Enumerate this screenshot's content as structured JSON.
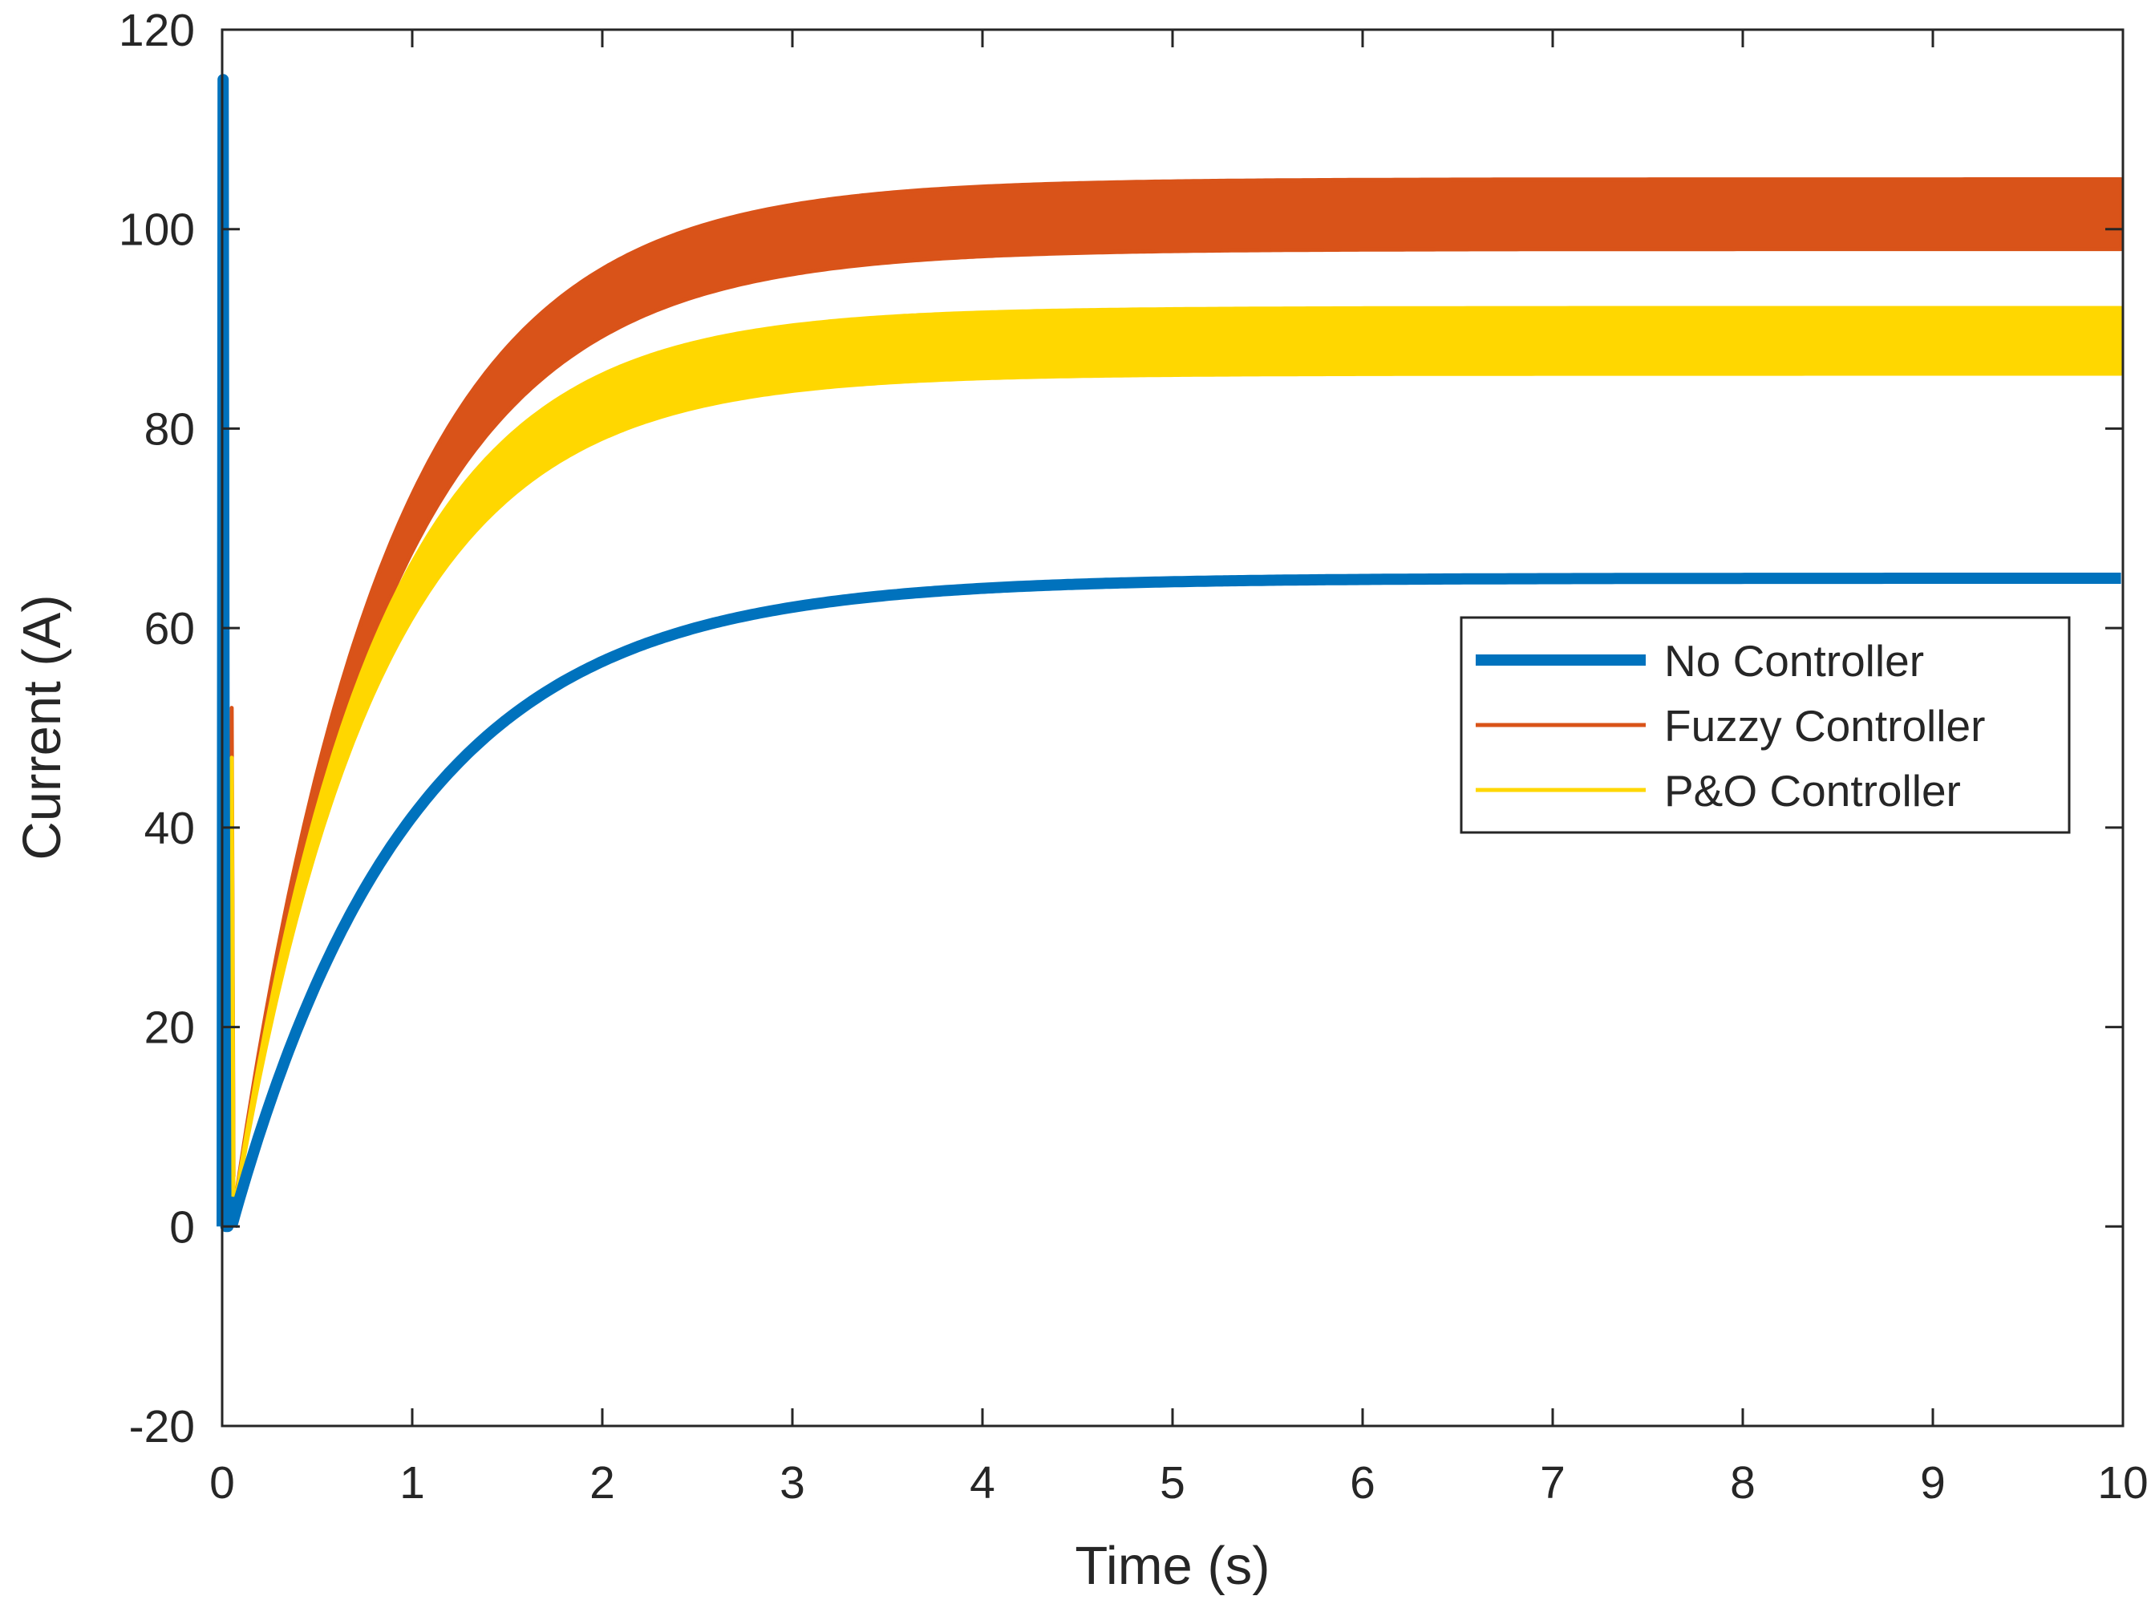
{
  "chart_data": {
    "type": "line",
    "title": "",
    "xlabel": "Time (s)",
    "ylabel": "Current (A)",
    "xlim": [
      0,
      10
    ],
    "ylim": [
      -20,
      120
    ],
    "xticks": [
      0,
      1,
      2,
      3,
      4,
      5,
      6,
      7,
      8,
      9,
      10
    ],
    "yticks": [
      -20,
      0,
      20,
      40,
      60,
      80,
      100,
      120
    ],
    "xtick_labels": [
      "0",
      "1",
      "2",
      "3",
      "4",
      "5",
      "6",
      "7",
      "8",
      "9",
      "10"
    ],
    "ytick_labels": [
      "-20",
      "0",
      "20",
      "40",
      "60",
      "80",
      "100",
      "120"
    ],
    "grid": false,
    "legend_position": "right-middle",
    "series": [
      {
        "name": "No Controller",
        "color": "#0072BD",
        "model": {
          "final": 65,
          "tau": 0.95,
          "t0": 0.05,
          "ripple": 0
        },
        "startup": {
          "t": [
            0,
            0.005,
            0.01,
            0.02,
            0.03,
            0.05
          ],
          "y": [
            0,
            115,
            50,
            0,
            0,
            3
          ]
        }
      },
      {
        "name": "Fuzzy Controller",
        "color": "#D95319",
        "model": {
          "final": 101.5,
          "tau": 0.8,
          "t0": 0.05,
          "ripple": 3.5
        },
        "startup": {
          "t": [
            0,
            0.01,
            0.015,
            0.02,
            0.03,
            0.05,
            0.06
          ],
          "y": [
            0,
            57,
            10,
            0,
            0,
            52,
            5
          ]
        }
      },
      {
        "name": "P&O Controller",
        "color": "#FFD700",
        "model": {
          "final": 88.8,
          "tau": 0.75,
          "t0": 0.05,
          "ripple": 3.3
        },
        "startup": {
          "t": [
            0,
            0.01,
            0.015,
            0.02,
            0.04,
            0.05,
            0.06
          ],
          "y": [
            0,
            48,
            5,
            0,
            0,
            47,
            2
          ]
        }
      }
    ]
  }
}
